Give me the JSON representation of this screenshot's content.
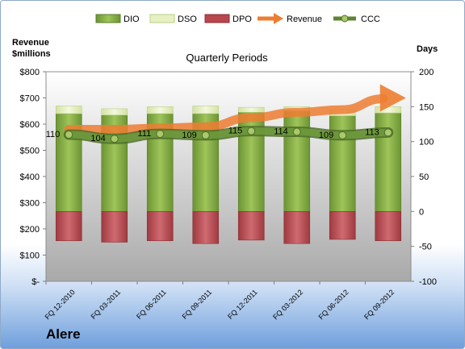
{
  "chart_data": {
    "type": "bar",
    "title": "Quarterly Periods",
    "company": "Alere",
    "left_axis": {
      "label_line1": "Revenue",
      "label_line2": "$millions",
      "ylim": [
        0,
        800
      ],
      "ticks": [
        0,
        100,
        200,
        300,
        400,
        500,
        600,
        700,
        800
      ],
      "tick_labels": [
        "$-",
        "$100",
        "$200",
        "$300",
        "$400",
        "$500",
        "$600",
        "$700",
        "$800"
      ]
    },
    "right_axis": {
      "label": "Days",
      "ylim": [
        -100,
        200
      ],
      "ticks": [
        -100,
        -50,
        0,
        50,
        100,
        150,
        200
      ],
      "tick_labels": [
        "-100",
        "-50",
        "0",
        "50",
        "100",
        "150",
        "200"
      ]
    },
    "categories": [
      "FQ 12-2010",
      "FQ 03-2011",
      "FQ 06-2011",
      "FQ 09-2011",
      "FQ 12-2011",
      "FQ 03-2012",
      "FQ 06-2012",
      "FQ 09-2012"
    ],
    "series": [
      {
        "name": "DIO",
        "axis": "right",
        "kind": "stacked-bar",
        "color": "#7fa640",
        "values": [
          140,
          138,
          140,
          140,
          142,
          144,
          137,
          141
        ]
      },
      {
        "name": "DSO",
        "axis": "right",
        "kind": "stacked-bar",
        "color": "#e6f0c2",
        "values": [
          11,
          9,
          10,
          11,
          7,
          6,
          9,
          9
        ]
      },
      {
        "name": "DPO",
        "axis": "right",
        "kind": "negative-bar",
        "color": "#b8474d",
        "values": [
          -42,
          -44,
          -42,
          -46,
          -41,
          -46,
          -40,
          -42
        ]
      },
      {
        "name": "Revenue",
        "axis": "left",
        "kind": "arrow-line",
        "color": "#ed7d31",
        "values": [
          580,
          580,
          585,
          590,
          625,
          645,
          655,
          700
        ]
      },
      {
        "name": "CCC",
        "axis": "right",
        "kind": "line",
        "color": "#6a8a3a",
        "values": [
          110,
          104,
          111,
          109,
          115,
          114,
          109,
          113
        ],
        "labels": [
          "110",
          "104",
          "111",
          "109",
          "115",
          "114",
          "109",
          "113"
        ]
      }
    ],
    "legend_position": "top",
    "grid": false
  }
}
